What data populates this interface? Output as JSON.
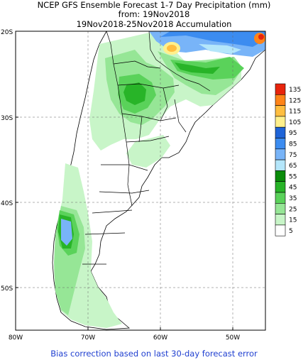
{
  "title": {
    "line1": "NCEP GFS Ensemble Forecast 1-7 Day Precipitation (mm)",
    "line2": "from: 19Nov2018",
    "line3": "19Nov2018-25Nov2018 Accumulation"
  },
  "axes": {
    "lat_labels": [
      "20S",
      "30S",
      "40S",
      "50S"
    ],
    "lon_labels": [
      "80W",
      "70W",
      "60W",
      "50W"
    ]
  },
  "legend": {
    "levels": [
      "135",
      "125",
      "115",
      "105",
      "95",
      "85",
      "75",
      "65",
      "55",
      "45",
      "35",
      "25",
      "15",
      "5"
    ],
    "colors": [
      "#e8240c",
      "#ff8418",
      "#ffbe40",
      "#fff08c",
      "#1e64d8",
      "#3c8cf0",
      "#78b4f8",
      "#b4e6fa",
      "#0a8c0a",
      "#28b428",
      "#5ad25a",
      "#96e696",
      "#c8f5c8",
      "#ffffff"
    ]
  },
  "footer": "Bias correction based on last 30-day forecast error"
}
